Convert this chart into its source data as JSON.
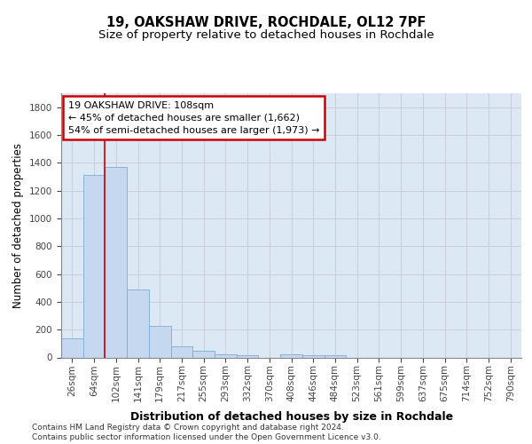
{
  "title1": "19, OAKSHAW DRIVE, ROCHDALE, OL12 7PF",
  "title2": "Size of property relative to detached houses in Rochdale",
  "xlabel": "Distribution of detached houses by size in Rochdale",
  "ylabel": "Number of detached properties",
  "bins": [
    "26sqm",
    "64sqm",
    "102sqm",
    "141sqm",
    "179sqm",
    "217sqm",
    "255sqm",
    "293sqm",
    "332sqm",
    "370sqm",
    "408sqm",
    "446sqm",
    "484sqm",
    "523sqm",
    "561sqm",
    "599sqm",
    "637sqm",
    "675sqm",
    "714sqm",
    "752sqm",
    "790sqm"
  ],
  "values": [
    140,
    1310,
    1370,
    490,
    225,
    80,
    48,
    25,
    15,
    0,
    20,
    15,
    15,
    0,
    0,
    0,
    0,
    0,
    0,
    0,
    0
  ],
  "bar_color": "#c5d8f0",
  "bar_edge_color": "#7bacd4",
  "vline_color": "#cc0000",
  "annotation_text": "19 OAKSHAW DRIVE: 108sqm\n← 45% of detached houses are smaller (1,662)\n54% of semi-detached houses are larger (1,973) →",
  "annotation_box_color": "#ffffff",
  "annotation_box_edge": "#cc0000",
  "ylim": [
    0,
    1900
  ],
  "yticks": [
    0,
    200,
    400,
    600,
    800,
    1000,
    1200,
    1400,
    1600,
    1800
  ],
  "grid_color": "#c8c8d8",
  "bg_color": "#dde8f5",
  "footer": "Contains HM Land Registry data © Crown copyright and database right 2024.\nContains public sector information licensed under the Open Government Licence v3.0.",
  "title1_fontsize": 10.5,
  "title2_fontsize": 9.5,
  "xlabel_fontsize": 9,
  "ylabel_fontsize": 8.5,
  "tick_fontsize": 7.5,
  "annot_fontsize": 8,
  "footer_fontsize": 6.5
}
